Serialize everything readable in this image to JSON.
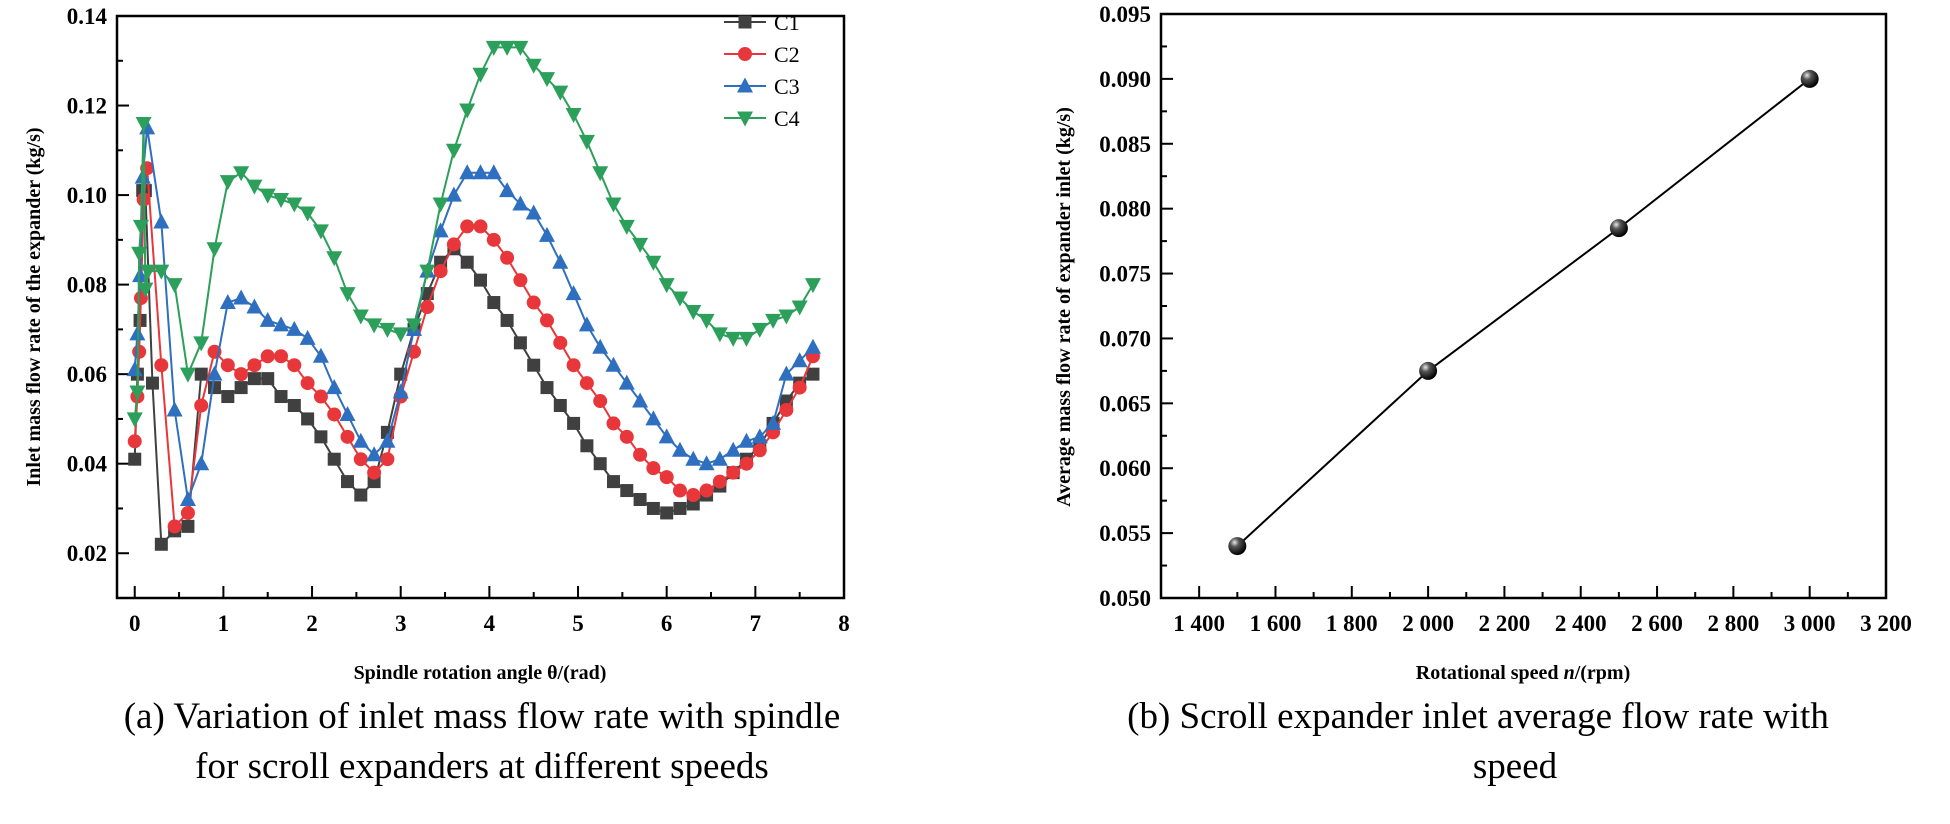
{
  "captions": {
    "a_line1": "(a) Variation of inlet mass flow rate with spindle",
    "a_line2": "for scroll expanders at different speeds",
    "b_line1": "(b) Scroll expander inlet average flow rate with",
    "b_line2": "speed"
  },
  "chart_data": [
    {
      "type": "line",
      "xlabel": "Spindle rotation angle θ/(rad)",
      "ylabel": "Inlet mass flow rate of the expander (kg/s)",
      "xlim": [
        -0.2,
        8
      ],
      "ylim": [
        0.01,
        0.14
      ],
      "xticks": [
        0,
        1,
        2,
        3,
        4,
        5,
        6,
        7,
        8
      ],
      "xtick_labels": [
        "0",
        "1",
        "2",
        "3",
        "4",
        "5",
        "6",
        "7",
        "8"
      ],
      "yticks": [
        0.02,
        0.04,
        0.06,
        0.08,
        0.1,
        0.12,
        0.14
      ],
      "ytick_labels": [
        "0.02",
        "0.04",
        "0.06",
        "0.08",
        "0.10",
        "0.12",
        "0.14"
      ],
      "grid": false,
      "legend_position": "top-right",
      "series": [
        {
          "name": "C1",
          "color": "#404040",
          "marker": "square",
          "x": [
            0,
            0.03,
            0.06,
            0.09,
            0.12,
            0.2,
            0.3,
            0.45,
            0.6,
            0.75,
            0.9,
            1.05,
            1.2,
            1.35,
            1.5,
            1.65,
            1.8,
            1.95,
            2.1,
            2.25,
            2.4,
            2.55,
            2.7,
            2.85,
            3.0,
            3.15,
            3.3,
            3.45,
            3.6,
            3.75,
            3.9,
            4.05,
            4.2,
            4.35,
            4.5,
            4.65,
            4.8,
            4.95,
            5.1,
            5.25,
            5.4,
            5.55,
            5.7,
            5.85,
            6.0,
            6.15,
            6.3,
            6.45,
            6.6,
            6.75,
            6.9,
            7.05,
            7.2,
            7.35,
            7.5,
            7.65
          ],
          "y": [
            0.041,
            0.06,
            0.072,
            0.101,
            0.101,
            0.058,
            0.022,
            0.025,
            0.026,
            0.06,
            0.057,
            0.055,
            0.057,
            0.059,
            0.059,
            0.055,
            0.053,
            0.05,
            0.046,
            0.041,
            0.036,
            0.033,
            0.036,
            0.047,
            0.06,
            0.07,
            0.078,
            0.085,
            0.088,
            0.085,
            0.081,
            0.076,
            0.072,
            0.067,
            0.062,
            0.057,
            0.053,
            0.049,
            0.044,
            0.04,
            0.036,
            0.034,
            0.032,
            0.03,
            0.029,
            0.03,
            0.031,
            0.033,
            0.035,
            0.038,
            0.041,
            0.044,
            0.049,
            0.054,
            0.058,
            0.06
          ]
        },
        {
          "name": "C2",
          "color": "#e8373a",
          "marker": "circle",
          "x": [
            0,
            0.03,
            0.05,
            0.07,
            0.1,
            0.14,
            0.3,
            0.45,
            0.6,
            0.75,
            0.9,
            1.05,
            1.2,
            1.35,
            1.5,
            1.65,
            1.8,
            1.95,
            2.1,
            2.25,
            2.4,
            2.55,
            2.7,
            2.85,
            3.0,
            3.15,
            3.3,
            3.45,
            3.6,
            3.75,
            3.9,
            4.05,
            4.2,
            4.35,
            4.5,
            4.65,
            4.8,
            4.95,
            5.1,
            5.25,
            5.4,
            5.55,
            5.7,
            5.85,
            6.0,
            6.15,
            6.3,
            6.45,
            6.6,
            6.75,
            6.9,
            7.05,
            7.2,
            7.35,
            7.5,
            7.65
          ],
          "y": [
            0.045,
            0.055,
            0.065,
            0.077,
            0.099,
            0.106,
            0.062,
            0.026,
            0.029,
            0.053,
            0.065,
            0.062,
            0.06,
            0.062,
            0.064,
            0.064,
            0.062,
            0.058,
            0.055,
            0.051,
            0.046,
            0.041,
            0.038,
            0.041,
            0.055,
            0.065,
            0.075,
            0.083,
            0.089,
            0.093,
            0.093,
            0.09,
            0.086,
            0.081,
            0.076,
            0.072,
            0.067,
            0.062,
            0.058,
            0.054,
            0.049,
            0.046,
            0.042,
            0.039,
            0.037,
            0.034,
            0.033,
            0.034,
            0.036,
            0.038,
            0.04,
            0.043,
            0.047,
            0.052,
            0.057,
            0.064
          ]
        },
        {
          "name": "C3",
          "color": "#2f6fbf",
          "marker": "triangle-up",
          "x": [
            0,
            0.03,
            0.06,
            0.09,
            0.14,
            0.3,
            0.45,
            0.6,
            0.75,
            0.9,
            1.05,
            1.2,
            1.35,
            1.5,
            1.65,
            1.8,
            1.95,
            2.1,
            2.25,
            2.4,
            2.55,
            2.7,
            2.85,
            3.0,
            3.15,
            3.3,
            3.45,
            3.6,
            3.75,
            3.9,
            4.05,
            4.2,
            4.35,
            4.5,
            4.65,
            4.8,
            4.95,
            5.1,
            5.25,
            5.4,
            5.55,
            5.7,
            5.85,
            6.0,
            6.15,
            6.3,
            6.45,
            6.6,
            6.75,
            6.9,
            7.05,
            7.2,
            7.35,
            7.5,
            7.65
          ],
          "y": [
            0.061,
            0.069,
            0.082,
            0.104,
            0.115,
            0.094,
            0.052,
            0.032,
            0.04,
            0.06,
            0.076,
            0.077,
            0.075,
            0.072,
            0.071,
            0.07,
            0.068,
            0.064,
            0.057,
            0.051,
            0.045,
            0.042,
            0.045,
            0.056,
            0.07,
            0.083,
            0.092,
            0.1,
            0.105,
            0.105,
            0.105,
            0.101,
            0.098,
            0.096,
            0.091,
            0.085,
            0.078,
            0.071,
            0.066,
            0.062,
            0.058,
            0.054,
            0.05,
            0.046,
            0.043,
            0.041,
            0.04,
            0.041,
            0.043,
            0.045,
            0.046,
            0.049,
            0.06,
            0.063,
            0.066
          ]
        },
        {
          "name": "C4",
          "color": "#2ca05a",
          "marker": "triangle-down",
          "x": [
            0,
            0.03,
            0.05,
            0.07,
            0.1,
            0.12,
            0.15,
            0.3,
            0.45,
            0.6,
            0.75,
            0.9,
            1.05,
            1.2,
            1.35,
            1.5,
            1.65,
            1.8,
            1.95,
            2.1,
            2.25,
            2.4,
            2.55,
            2.7,
            2.85,
            3.0,
            3.15,
            3.3,
            3.45,
            3.6,
            3.75,
            3.9,
            4.05,
            4.2,
            4.35,
            4.5,
            4.65,
            4.8,
            4.95,
            5.1,
            5.25,
            5.4,
            5.55,
            5.7,
            5.85,
            6.0,
            6.15,
            6.3,
            6.45,
            6.6,
            6.75,
            6.9,
            7.05,
            7.2,
            7.35,
            7.5,
            7.65
          ],
          "y": [
            0.05,
            0.056,
            0.087,
            0.093,
            0.116,
            0.079,
            0.083,
            0.083,
            0.08,
            0.06,
            0.067,
            0.088,
            0.103,
            0.105,
            0.102,
            0.1,
            0.099,
            0.098,
            0.096,
            0.092,
            0.086,
            0.078,
            0.073,
            0.071,
            0.07,
            0.069,
            0.071,
            0.083,
            0.098,
            0.11,
            0.119,
            0.127,
            0.133,
            0.133,
            0.133,
            0.129,
            0.126,
            0.123,
            0.118,
            0.112,
            0.105,
            0.098,
            0.093,
            0.089,
            0.085,
            0.08,
            0.077,
            0.074,
            0.072,
            0.069,
            0.068,
            0.068,
            0.07,
            0.072,
            0.073,
            0.075,
            0.08
          ]
        }
      ]
    },
    {
      "type": "line",
      "xlabel_prefix": "Rotational speed ",
      "xlabel_var": "n",
      "xlabel_suffix": "/(rpm)",
      "ylabel": "Average mass flow rate of expander inlet (kg/s)",
      "xlim": [
        1300,
        3200
      ],
      "ylim": [
        0.05,
        0.095
      ],
      "xticks": [
        1400,
        1600,
        1800,
        2000,
        2200,
        2400,
        2600,
        2800,
        3000,
        3200
      ],
      "xtick_labels": [
        "1 400",
        "1 600",
        "1 800",
        "2 000",
        "2 200",
        "2 400",
        "2 600",
        "2 800",
        "3 000",
        "3 200"
      ],
      "yticks": [
        0.05,
        0.055,
        0.06,
        0.065,
        0.07,
        0.075,
        0.08,
        0.085,
        0.09,
        0.095
      ],
      "ytick_labels": [
        "0.050",
        "0.055",
        "0.060",
        "0.065",
        "0.070",
        "0.075",
        "0.080",
        "0.085",
        "0.090",
        "0.095"
      ],
      "grid": false,
      "series": [
        {
          "color": "#000000",
          "marker": "sphere",
          "x": [
            1500,
            2000,
            2500,
            3000
          ],
          "y": [
            0.054,
            0.0675,
            0.0785,
            0.09
          ]
        }
      ]
    }
  ]
}
